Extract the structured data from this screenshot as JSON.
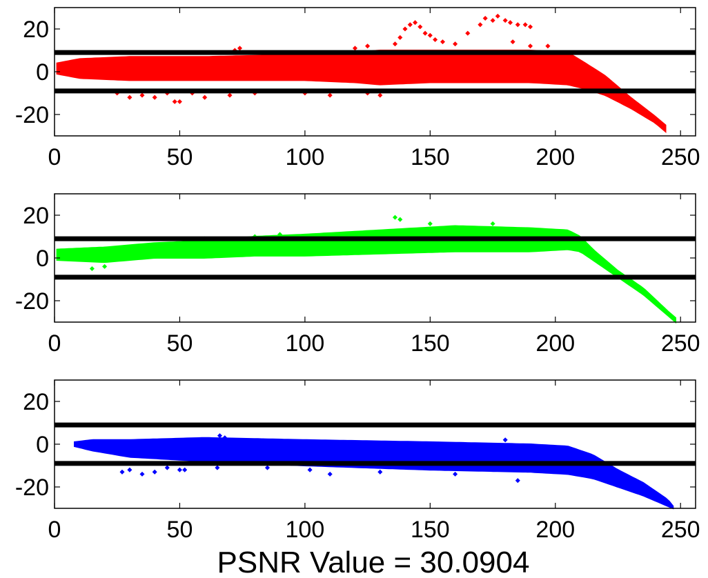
{
  "figure_title": "PSNR Value = 30.0904",
  "chart_data": [
    {
      "type": "scatter",
      "color": "#ff0000",
      "xlim": [
        0,
        256
      ],
      "ylim": [
        -30,
        30
      ],
      "xticks": [
        0,
        50,
        100,
        150,
        200,
        250
      ],
      "yticks": [
        20,
        0,
        -20
      ],
      "grid": false,
      "legend": "none",
      "threshold_lines": [
        9,
        -9
      ],
      "envelope": {
        "x": [
          1,
          10,
          30,
          60,
          100,
          120,
          130,
          150,
          170,
          190,
          205,
          212,
          220,
          230,
          240,
          244
        ],
        "low": [
          -1,
          -3,
          -4,
          -4,
          -4,
          -5,
          -6,
          -5,
          -5,
          -5,
          -6,
          -8,
          -11,
          -17,
          -24,
          -28
        ],
        "high": [
          4,
          6,
          7,
          7,
          8,
          9,
          10,
          10,
          10,
          10,
          9,
          4,
          -2,
          -12,
          -21,
          -25
        ]
      },
      "outliers": [
        [
          25,
          -10
        ],
        [
          30,
          -12
        ],
        [
          35,
          -11
        ],
        [
          40,
          -12
        ],
        [
          45,
          -10
        ],
        [
          48,
          -14
        ],
        [
          50,
          -14
        ],
        [
          55,
          -10
        ],
        [
          60,
          -12
        ],
        [
          70,
          -11
        ],
        [
          80,
          -10
        ],
        [
          100,
          -10
        ],
        [
          110,
          -11
        ],
        [
          125,
          -10
        ],
        [
          130,
          -11
        ],
        [
          72,
          10
        ],
        [
          74,
          11
        ],
        [
          120,
          11
        ],
        [
          125,
          12
        ],
        [
          138,
          16
        ],
        [
          140,
          20
        ],
        [
          142,
          22
        ],
        [
          144,
          23
        ],
        [
          146,
          21
        ],
        [
          148,
          18
        ],
        [
          150,
          17
        ],
        [
          152,
          15
        ],
        [
          136,
          13
        ],
        [
          160,
          13
        ],
        [
          165,
          18
        ],
        [
          170,
          22
        ],
        [
          172,
          25
        ],
        [
          175,
          24
        ],
        [
          177,
          26
        ],
        [
          180,
          24
        ],
        [
          182,
          23
        ],
        [
          185,
          22
        ],
        [
          188,
          22
        ],
        [
          190,
          21
        ],
        [
          155,
          14
        ],
        [
          183,
          14
        ],
        [
          190,
          12
        ],
        [
          197,
          12
        ]
      ]
    },
    {
      "type": "scatter",
      "color": "#00ff00",
      "xlim": [
        0,
        256
      ],
      "ylim": [
        -30,
        30
      ],
      "xticks": [
        0,
        50,
        100,
        150,
        200,
        250
      ],
      "yticks": [
        20,
        0,
        -20
      ],
      "grid": false,
      "legend": "none",
      "threshold_lines": [
        9,
        -9
      ],
      "envelope": {
        "x": [
          1,
          20,
          40,
          60,
          80,
          100,
          130,
          160,
          190,
          205,
          210,
          215,
          225,
          235,
          245,
          248
        ],
        "low": [
          -1,
          -2,
          0,
          0,
          1,
          1,
          2,
          3,
          3,
          4,
          3,
          -1,
          -9,
          -17,
          -27,
          -30
        ],
        "high": [
          4,
          5,
          7,
          8,
          10,
          11,
          13,
          15,
          14,
          13,
          10,
          4,
          -6,
          -14,
          -25,
          -28
        ]
      },
      "outliers": [
        [
          15,
          -5
        ],
        [
          20,
          -4
        ],
        [
          136,
          19
        ],
        [
          138,
          18
        ],
        [
          150,
          16
        ],
        [
          175,
          16
        ],
        [
          60,
          9
        ],
        [
          80,
          10
        ],
        [
          90,
          11
        ]
      ]
    },
    {
      "type": "scatter",
      "color": "#0000ff",
      "xlim": [
        0,
        256
      ],
      "ylim": [
        -30,
        30
      ],
      "xticks": [
        0,
        50,
        100,
        150,
        200,
        250
      ],
      "yticks": [
        20,
        0,
        -20
      ],
      "grid": false,
      "legend": "none",
      "threshold_lines": [
        9,
        -9
      ],
      "envelope": {
        "x": [
          8,
          15,
          30,
          60,
          100,
          150,
          190,
          205,
          215,
          225,
          235,
          245,
          247
        ],
        "low": [
          -1,
          -3,
          -6,
          -8,
          -10,
          -12,
          -13,
          -14,
          -16,
          -20,
          -24,
          -29,
          -30
        ],
        "high": [
          1,
          2,
          2,
          3,
          2,
          1,
          0,
          -1,
          -5,
          -12,
          -18,
          -26,
          -29
        ]
      },
      "outliers": [
        [
          27,
          -13
        ],
        [
          30,
          -12
        ],
        [
          35,
          -14
        ],
        [
          40,
          -13
        ],
        [
          45,
          -11
        ],
        [
          50,
          -12
        ],
        [
          52,
          -12
        ],
        [
          65,
          -11
        ],
        [
          85,
          -11
        ],
        [
          102,
          -12
        ],
        [
          110,
          -14
        ],
        [
          130,
          -13
        ],
        [
          160,
          -14
        ],
        [
          185,
          -17
        ],
        [
          66,
          4
        ],
        [
          68,
          3
        ],
        [
          180,
          2
        ]
      ]
    }
  ]
}
